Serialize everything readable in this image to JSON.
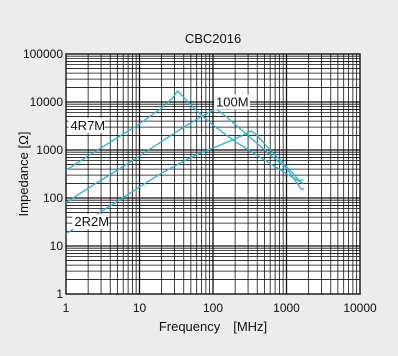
{
  "chart_data": {
    "type": "line",
    "title": "CBC2016",
    "xlabel": "Frequency　[MHz]",
    "ylabel": "Impedance [Ω]",
    "xscale": "log",
    "yscale": "log",
    "xlim": [
      1,
      10000
    ],
    "ylim": [
      1,
      100000
    ],
    "x_ticks": [
      "1",
      "10",
      "100",
      "1000",
      "10000"
    ],
    "y_ticks": [
      "1",
      "10",
      "100",
      "1000",
      "10000",
      "100000"
    ],
    "grid": true,
    "line_color": "#2ab1d6",
    "series": [
      {
        "name": "4R7M",
        "x": [
          1,
          2,
          5,
          10,
          20,
          28,
          33,
          40,
          60,
          100,
          200,
          500,
          1000,
          1700
        ],
        "y": [
          380,
          750,
          1800,
          3500,
          7500,
          12000,
          17000,
          12500,
          6500,
          3300,
          1500,
          620,
          320,
          200
        ]
      },
      {
        "name": "100M",
        "x": [
          1,
          2,
          5,
          10,
          20,
          40,
          70,
          100,
          110,
          150,
          300,
          600,
          1000,
          1600,
          1750
        ],
        "y": [
          80,
          160,
          380,
          750,
          1500,
          3000,
          5000,
          6800,
          7200,
          5000,
          2000,
          800,
          420,
          150,
          160
        ]
      },
      {
        "name": "2R2M",
        "x": [
          1,
          2,
          5,
          10,
          20,
          50,
          100,
          200,
          300,
          330,
          400,
          600,
          1000,
          1500,
          1700
        ],
        "y": [
          18,
          35,
          85,
          170,
          330,
          700,
          1100,
          1700,
          2300,
          2500,
          2000,
          1000,
          450,
          230,
          240
        ]
      }
    ]
  }
}
